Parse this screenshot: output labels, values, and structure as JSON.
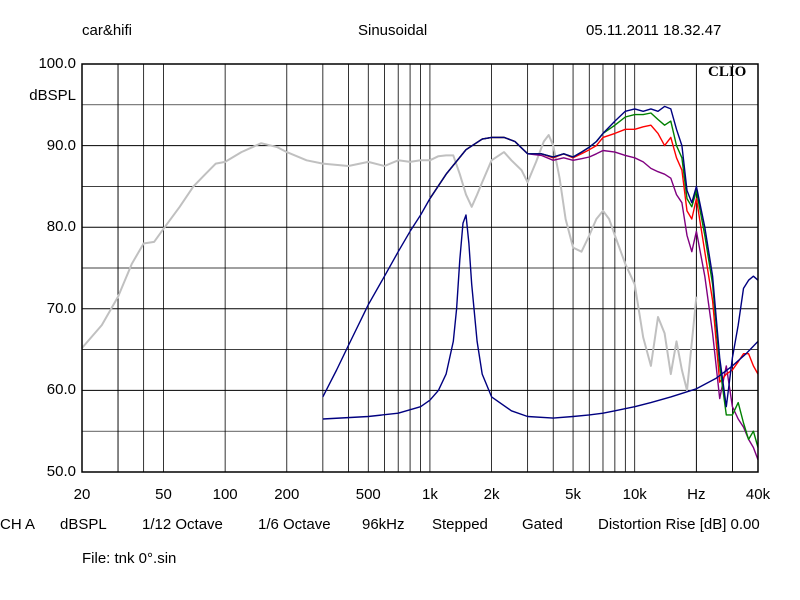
{
  "header": {
    "left": "car&hifi",
    "center": "Sinusoidal",
    "right": "05.11.2011 18.32.47"
  },
  "brand": "CLIO",
  "footer": {
    "items": [
      "CH A",
      "dBSPL",
      "1/12 Octave",
      "1/6 Octave",
      "96kHz",
      "Stepped",
      "Gated",
      "Distortion Rise [dB] 0.00"
    ],
    "file": "File: tnk 0°.sin"
  },
  "chart_data": {
    "type": "line",
    "xscale": "log",
    "xlim": [
      20,
      40000
    ],
    "ylim": [
      50,
      100
    ],
    "ylabel": "dBSPL",
    "grid": true,
    "y_ticks": [
      {
        "value": 100,
        "label": "100.0"
      },
      {
        "value": 90,
        "label": "90.0"
      },
      {
        "value": 80,
        "label": "80.0"
      },
      {
        "value": 70,
        "label": "70.0"
      },
      {
        "value": 60,
        "label": "60.0"
      },
      {
        "value": 50,
        "label": "50.0"
      }
    ],
    "x_ticks": [
      {
        "value": 20,
        "label": "20"
      },
      {
        "value": 50,
        "label": "50"
      },
      {
        "value": 100,
        "label": "100"
      },
      {
        "value": 200,
        "label": "200"
      },
      {
        "value": 500,
        "label": "500"
      },
      {
        "value": 1000,
        "label": "1k"
      },
      {
        "value": 2000,
        "label": "2k"
      },
      {
        "value": 5000,
        "label": "5k"
      },
      {
        "value": 10000,
        "label": "10k"
      },
      {
        "value": 20000,
        "label": "Hz"
      },
      {
        "value": 40000,
        "label": "40k"
      }
    ],
    "series": [
      {
        "color": "#c0c0c0",
        "x": [
          20,
          25,
          30,
          35,
          40,
          45,
          50,
          60,
          70,
          80,
          90,
          100,
          120,
          150,
          180,
          200,
          250,
          300,
          400,
          500,
          600,
          700,
          800,
          900,
          1000,
          1100,
          1200,
          1300,
          1400,
          1500,
          1600,
          1700,
          1800,
          2000,
          2300,
          2500,
          2800,
          3000,
          3300,
          3600,
          3800,
          4000,
          4300,
          4600,
          5000,
          5500,
          6000,
          6500,
          7000,
          7500,
          8000,
          9000,
          10000,
          11000,
          12000,
          13000,
          14000,
          15000,
          16000,
          17000,
          18000,
          20000
        ],
        "y": [
          65.2,
          68,
          71.5,
          75.5,
          78,
          78.2,
          79.8,
          82.5,
          85,
          86.5,
          87.8,
          88,
          89.2,
          90.3,
          89.8,
          89.2,
          88.2,
          87.8,
          87.5,
          88,
          87.5,
          88.2,
          88,
          88.2,
          88.2,
          88.7,
          88.8,
          88.8,
          86.5,
          84,
          82.5,
          84,
          85.5,
          88.2,
          89.2,
          88.2,
          87,
          85.5,
          88,
          90.5,
          91.3,
          90,
          86,
          81,
          77.5,
          77,
          79,
          81,
          82,
          81,
          79,
          75.5,
          73,
          66.5,
          63,
          69,
          67,
          62,
          66,
          62.5,
          60,
          71.5
        ]
      },
      {
        "color": "#800080",
        "x": [
          1000,
          1200,
          1500,
          1800,
          2000,
          2300,
          2600,
          3000,
          3500,
          4000,
          4500,
          5000,
          5500,
          6000,
          6500,
          7000,
          8000,
          9000,
          10000,
          11000,
          12000,
          13000,
          14000,
          15000,
          16000,
          17000,
          18000,
          19000,
          20000,
          22000,
          24000,
          26000,
          28000,
          30000,
          32000,
          34000,
          36000,
          38000,
          40000
        ],
        "y": [
          83.5,
          86.5,
          89.5,
          90.8,
          91,
          91,
          90.5,
          89,
          88.8,
          88.2,
          88.5,
          88.2,
          88.4,
          88.6,
          89,
          89.4,
          89.2,
          88.8,
          88.5,
          88,
          87.2,
          86.8,
          86.5,
          86,
          84,
          83,
          79,
          77,
          79.5,
          74,
          67,
          59,
          63,
          58,
          56.5,
          55.5,
          54,
          53,
          51.5
        ]
      },
      {
        "color": "#ff0000",
        "x": [
          1000,
          1200,
          1500,
          1800,
          2000,
          2300,
          2600,
          3000,
          3500,
          4000,
          4500,
          5000,
          5500,
          6000,
          6500,
          7000,
          8000,
          9000,
          10000,
          11000,
          12000,
          13000,
          14000,
          15000,
          16000,
          17000,
          18000,
          19000,
          20000,
          22000,
          24000,
          26000,
          28000,
          30000,
          32000,
          34000,
          36000,
          38000,
          40000
        ],
        "y": [
          83.5,
          86.5,
          89.5,
          90.8,
          91,
          91,
          90.5,
          89,
          89,
          88.5,
          89,
          88.5,
          89,
          89.5,
          90,
          91,
          91.5,
          92,
          92,
          92.3,
          92.5,
          91.5,
          90,
          91,
          88.5,
          87,
          82,
          81,
          83.5,
          77,
          71,
          61,
          62,
          62.5,
          63.5,
          64.5,
          64.5,
          63,
          62
        ]
      },
      {
        "color": "#008000",
        "x": [
          1000,
          1200,
          1500,
          1800,
          2000,
          2300,
          2600,
          3000,
          3500,
          4000,
          4500,
          5000,
          5500,
          6000,
          6500,
          7000,
          8000,
          9000,
          10000,
          11000,
          12000,
          13000,
          14000,
          15000,
          16000,
          17000,
          18000,
          19000,
          20000,
          22000,
          24000,
          26000,
          28000,
          30000,
          32000,
          34000,
          36000,
          38000,
          40000
        ],
        "y": [
          83.5,
          86.5,
          89.5,
          90.8,
          91,
          91,
          90.5,
          89,
          89,
          88.6,
          89,
          88.6,
          89.2,
          89.8,
          90.5,
          91.5,
          92.5,
          93.5,
          93.8,
          93.8,
          94,
          93.2,
          92.5,
          93,
          90,
          88.5,
          83.5,
          82.5,
          84.5,
          79,
          73,
          63,
          57,
          57,
          58.5,
          56,
          54,
          55,
          53
        ]
      },
      {
        "color": "#000080",
        "x": [
          300,
          350,
          400,
          500,
          600,
          700,
          800,
          900,
          1000,
          1200,
          1500,
          1800,
          2000,
          2300,
          2600,
          3000,
          3500,
          4000,
          4500,
          5000,
          5500,
          6000,
          6500,
          7000,
          8000,
          9000,
          10000,
          11000,
          12000,
          13000,
          14000,
          15000,
          16000,
          17000,
          18000,
          19000,
          20000,
          22000,
          24000,
          26000,
          28000,
          30000,
          32000,
          34000,
          36000,
          38000,
          40000
        ],
        "y": [
          59.2,
          62.5,
          65.5,
          70.5,
          74,
          77,
          79.5,
          81.5,
          83.5,
          86.5,
          89.5,
          90.8,
          91,
          91,
          90.5,
          89,
          89,
          88.6,
          89,
          88.6,
          89.2,
          89.8,
          90.5,
          91.5,
          93,
          94.2,
          94.5,
          94.2,
          94.5,
          94.2,
          94.8,
          94.5,
          92,
          90,
          84.5,
          83,
          85,
          80,
          74,
          64,
          58,
          64,
          68,
          72.5,
          73.5,
          74,
          73.5
        ]
      },
      {
        "color": "#000080",
        "x": [
          300,
          500,
          700,
          900,
          1000,
          1100,
          1200,
          1300,
          1350,
          1400,
          1450,
          1500,
          1550,
          1600,
          1700,
          1800,
          2000,
          2500,
          3000,
          4000,
          5000,
          6000,
          7000,
          8000,
          10000,
          12000,
          15000,
          20000,
          25000,
          30000,
          35000,
          40000
        ],
        "y": [
          56.5,
          56.8,
          57.2,
          58,
          58.8,
          60,
          62,
          66,
          70,
          76,
          80.5,
          81.5,
          78,
          73,
          66,
          62,
          59.2,
          57.5,
          56.8,
          56.6,
          56.8,
          57,
          57.2,
          57.5,
          58,
          58.5,
          59.2,
          60.2,
          61.5,
          63,
          64.5,
          66
        ]
      }
    ]
  }
}
